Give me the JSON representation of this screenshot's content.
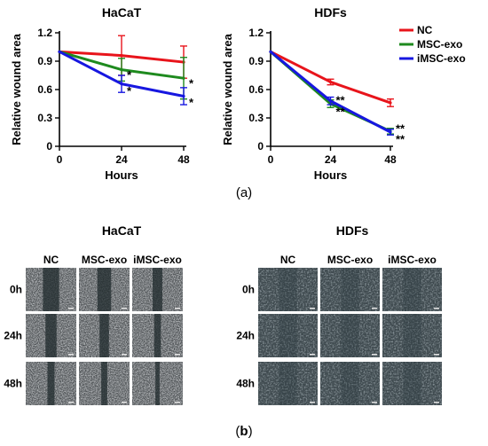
{
  "chart_data": [
    {
      "type": "line",
      "title": "HaCaT",
      "xlabel": "Hours",
      "ylabel": "Relative wound area",
      "x": [
        0,
        24,
        48
      ],
      "xticks": [
        "0",
        "24",
        "48"
      ],
      "ylim": [
        0,
        1.2
      ],
      "yticks": [
        "0",
        "0.3",
        "0.6",
        "0.9",
        "1.2"
      ],
      "series": [
        {
          "name": "NC",
          "color": "#e8141b",
          "values": [
            1.0,
            0.96,
            0.89
          ],
          "err": [
            0,
            0.21,
            0.17
          ]
        },
        {
          "name": "MSC-exo",
          "color": "#1e8a1e",
          "values": [
            1.0,
            0.81,
            0.72
          ],
          "err": [
            0,
            0.12,
            0.22
          ]
        },
        {
          "name": "iMSC-exo",
          "color": "#1717e0",
          "values": [
            1.0,
            0.66,
            0.53
          ],
          "err": [
            0,
            0.09,
            0.09
          ]
        }
      ],
      "annotations": [
        {
          "x": 24,
          "y": 0.77,
          "text": "*"
        },
        {
          "x": 24,
          "y": 0.6,
          "text": "*"
        },
        {
          "x": 48,
          "y": 0.68,
          "text": "*"
        },
        {
          "x": 48,
          "y": 0.48,
          "text": "*"
        }
      ],
      "legend": "none"
    },
    {
      "type": "line",
      "title": "HDFs",
      "xlabel": "Hours",
      "ylabel": "Relative wound area",
      "x": [
        0,
        24,
        48
      ],
      "xticks": [
        "0",
        "24",
        "48"
      ],
      "ylim": [
        0,
        1.2
      ],
      "yticks": [
        "0",
        "0.3",
        "0.6",
        "0.9",
        "1.2"
      ],
      "series": [
        {
          "name": "NC",
          "color": "#e8141b",
          "values": [
            1.0,
            0.68,
            0.46
          ],
          "err": [
            0,
            0.03,
            0.04
          ]
        },
        {
          "name": "MSC-exo",
          "color": "#1e8a1e",
          "values": [
            1.0,
            0.45,
            0.16
          ],
          "err": [
            0,
            0.04,
            0.03
          ]
        },
        {
          "name": "iMSC-exo",
          "color": "#1717e0",
          "values": [
            1.0,
            0.48,
            0.15
          ],
          "err": [
            0,
            0.04,
            0.03
          ]
        }
      ],
      "annotations": [
        {
          "x": 24,
          "y": 0.5,
          "text": "**"
        },
        {
          "x": 24,
          "y": 0.38,
          "text": "**"
        },
        {
          "x": 48,
          "y": 0.2,
          "text": "**"
        },
        {
          "x": 48,
          "y": 0.09,
          "text": "**"
        }
      ],
      "legend": "top-right"
    }
  ],
  "panel_a_caption": {
    "open": "(",
    "letter": "a",
    "close": ")"
  },
  "panel_b_caption": {
    "open": "(",
    "letter": "b",
    "close": ")"
  },
  "micrographs": {
    "groups": [
      {
        "title": "HaCaT",
        "columns": [
          "NC",
          "MSC-exo",
          "iMSC-exo"
        ],
        "rows": [
          "0h",
          "24h",
          "48h"
        ],
        "style": "dense"
      },
      {
        "title": "HDFs",
        "columns": [
          "NC",
          "MSC-exo",
          "iMSC-exo"
        ],
        "rows": [
          "0h",
          "24h",
          "48h"
        ],
        "style": "sparse"
      }
    ]
  }
}
